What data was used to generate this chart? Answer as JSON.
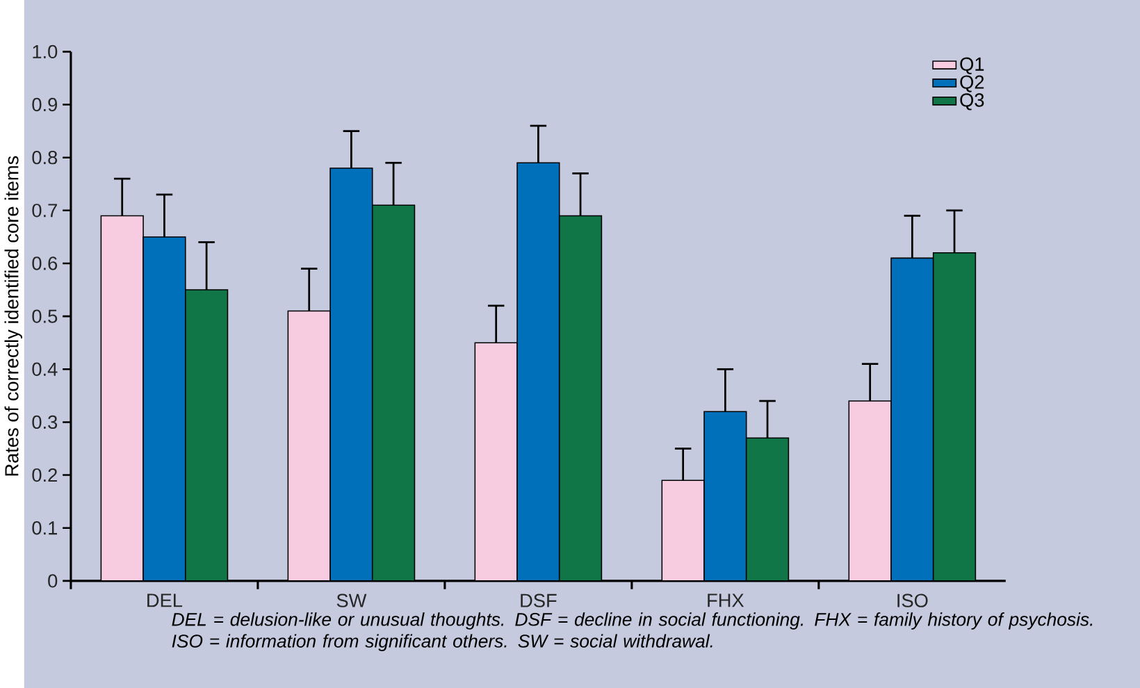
{
  "chart_data": {
    "type": "bar",
    "ylabel": "Rates of correctly identified core items",
    "categories": [
      "DEL",
      "SW",
      "DSF",
      "FHX",
      "ISO"
    ],
    "series": [
      {
        "name": "Q1",
        "color": "#f8cce0",
        "values": [
          0.69,
          0.51,
          0.45,
          0.19,
          0.34
        ],
        "errors": [
          [
            0.69,
            0.76
          ],
          [
            0.51,
            0.59
          ],
          [
            0.45,
            0.52
          ],
          [
            0.19,
            0.25
          ],
          [
            0.34,
            0.41
          ]
        ]
      },
      {
        "name": "Q2",
        "color": "#0070bb",
        "values": [
          0.65,
          0.78,
          0.79,
          0.32,
          0.61
        ],
        "errors": [
          [
            0.65,
            0.73
          ],
          [
            0.78,
            0.85
          ],
          [
            0.79,
            0.86
          ],
          [
            0.32,
            0.4
          ],
          [
            0.61,
            0.69
          ]
        ]
      },
      {
        "name": "Q3",
        "color": "#107547",
        "values": [
          0.55,
          0.71,
          0.69,
          0.27,
          0.62
        ],
        "errors": [
          [
            0.55,
            0.64
          ],
          [
            0.71,
            0.79
          ],
          [
            0.69,
            0.77
          ],
          [
            0.27,
            0.34
          ],
          [
            0.62,
            0.7
          ]
        ]
      }
    ],
    "ylim": [
      0,
      1
    ],
    "yticks": [
      0,
      0.1,
      0.2,
      0.3,
      0.4,
      0.5,
      0.6,
      0.7,
      0.8,
      0.9,
      {
        "value": 1,
        "label": "1.0"
      }
    ],
    "grid": false,
    "legend": "top right",
    "annotations": [
      "DEL = delusion-like or unusual thoughts. DSF = decline in social functioning. FHX = family history of psychosis. ISO = information from significant others. SW = social withdrawal."
    ]
  }
}
